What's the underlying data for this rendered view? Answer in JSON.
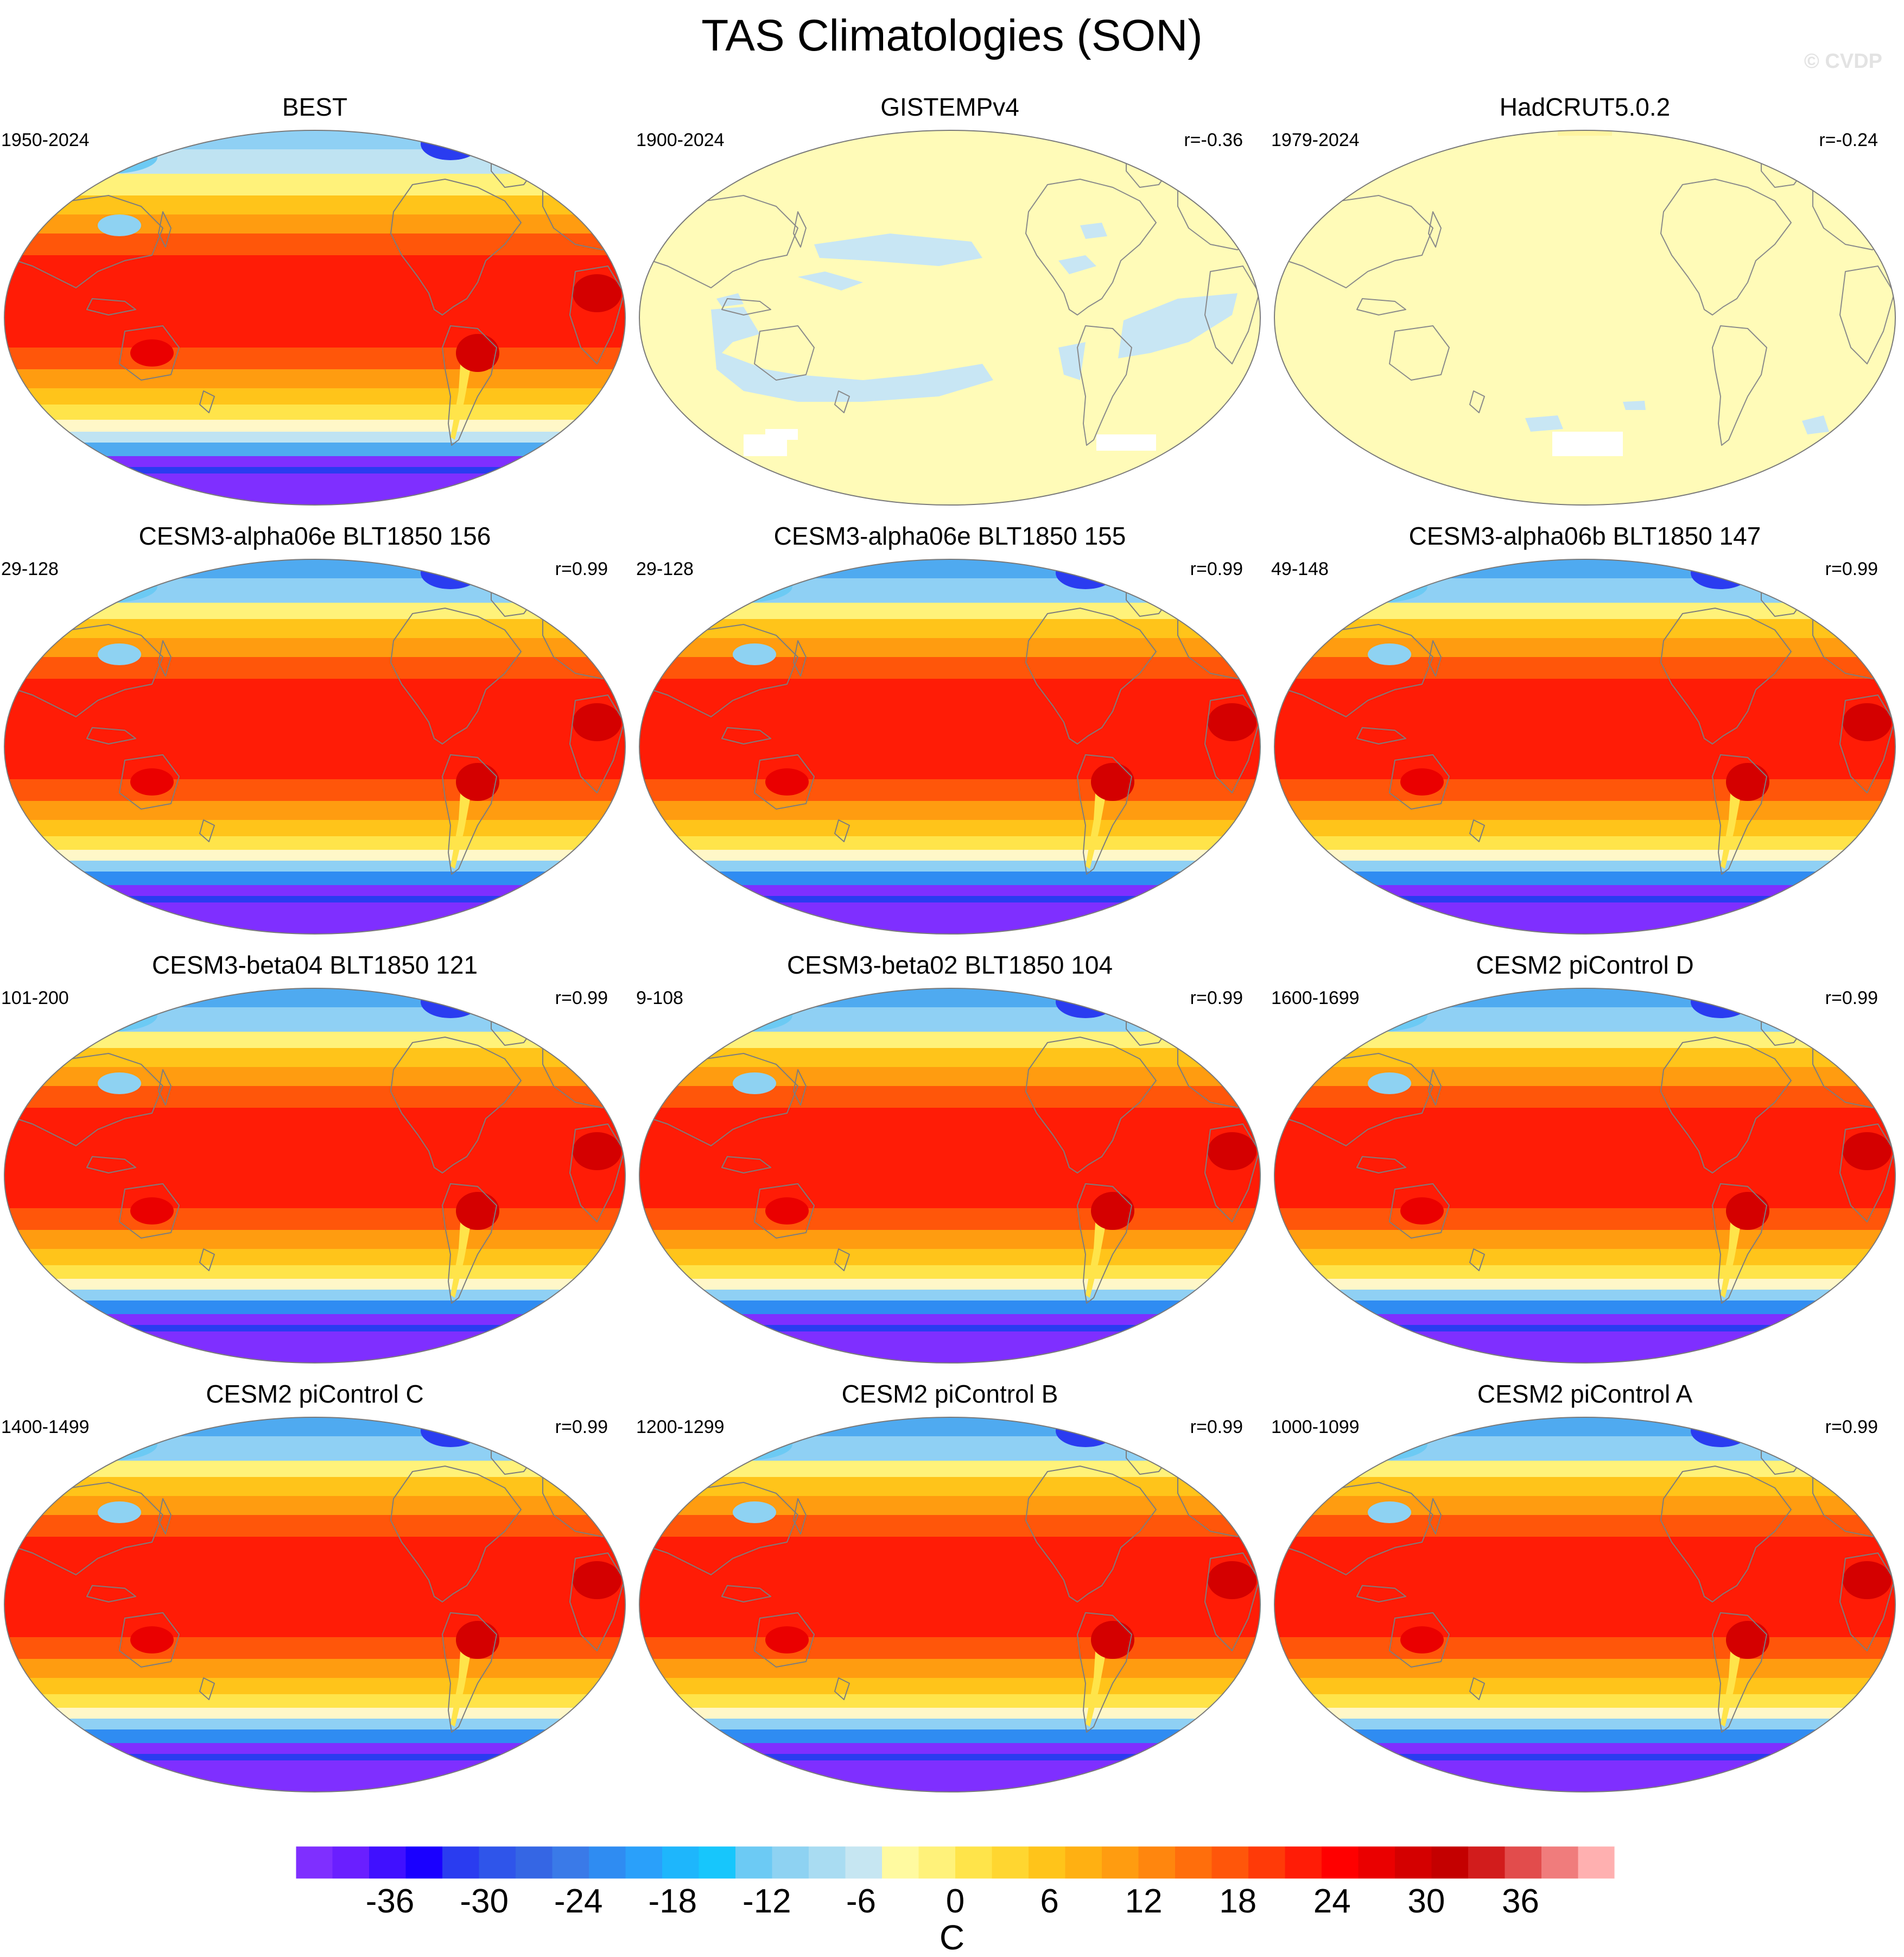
{
  "title": "TAS Climatologies (SON)",
  "credit": "© CVDP",
  "panels": [
    {
      "title": "BEST",
      "period": "1950-2024",
      "r": "",
      "style": "obs"
    },
    {
      "title": "GISTEMPv4",
      "period": "1900-2024",
      "r": "r=-0.36",
      "style": "pale1"
    },
    {
      "title": "HadCRUT5.0.2",
      "period": "1979-2024",
      "r": "r=-0.24",
      "style": "pale2"
    },
    {
      "title": "CESM3-alpha06e BLT1850 156",
      "period": "29-128",
      "r": "r=0.99",
      "style": "model"
    },
    {
      "title": "CESM3-alpha06e BLT1850 155",
      "period": "29-128",
      "r": "r=0.99",
      "style": "model"
    },
    {
      "title": "CESM3-alpha06b BLT1850 147",
      "period": "49-148",
      "r": "r=0.99",
      "style": "model"
    },
    {
      "title": "CESM3-beta04 BLT1850 121",
      "period": "101-200",
      "r": "r=0.99",
      "style": "model"
    },
    {
      "title": "CESM3-beta02 BLT1850 104",
      "period": "9-108",
      "r": "r=0.99",
      "style": "model"
    },
    {
      "title": "CESM2 piControl D",
      "period": "1600-1699",
      "r": "r=0.99",
      "style": "model"
    },
    {
      "title": "CESM2 piControl C",
      "period": "1400-1499",
      "r": "r=0.99",
      "style": "model"
    },
    {
      "title": "CESM2 piControl B",
      "period": "1200-1299",
      "r": "r=0.99",
      "style": "model"
    },
    {
      "title": "CESM2 piControl A",
      "period": "1000-1099",
      "r": "r=0.99",
      "style": "model"
    }
  ],
  "colorbar": {
    "unit": "C",
    "ticks": [
      "-36",
      "-30",
      "-24",
      "-18",
      "-12",
      "-6",
      "0",
      "6",
      "12",
      "18",
      "24",
      "30",
      "36"
    ],
    "colors": [
      "#7f2fff",
      "#6a1fff",
      "#4010ff",
      "#1a00ff",
      "#2a3cf0",
      "#2f55ea",
      "#3566e4",
      "#3a7ae8",
      "#2f8cf2",
      "#2aa0fa",
      "#1eb6fc",
      "#17c6fc",
      "#6ccaf4",
      "#8ed2f2",
      "#a9dcf2",
      "#c6e6f2",
      "#fffaa0",
      "#fff27a",
      "#ffe44a",
      "#ffd630",
      "#ffc41a",
      "#ffb012",
      "#ff9c10",
      "#ff860e",
      "#ff6e0c",
      "#ff560a",
      "#ff3a08",
      "#ff1c06",
      "#ff0000",
      "#ea0000",
      "#d40000",
      "#c40000",
      "#d21c1c",
      "#e24c4c",
      "#f07c7c",
      "#ffb0b0"
    ],
    "range": [
      -42,
      42
    ]
  }
}
